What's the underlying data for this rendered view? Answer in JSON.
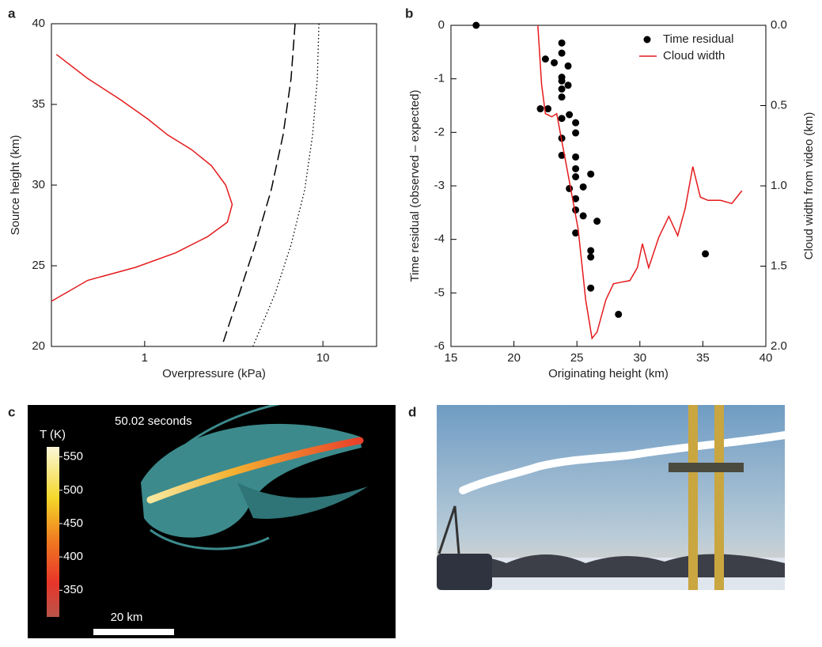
{
  "chart_data": [
    {
      "type": "line",
      "panel": "a",
      "xscale": "log",
      "xlabel": "Overpressure (kPa)",
      "ylabel": "Source height (km)",
      "xlim": [
        0.3,
        20
      ],
      "xticks": [
        1,
        10
      ],
      "ylim": [
        20,
        40
      ],
      "yticks": [
        20,
        25,
        30,
        35,
        40
      ],
      "series": [
        {
          "color": "#e41a1c",
          "line_style": "solid",
          "x": [
            0.32,
            0.48,
            0.73,
            1.04,
            1.35,
            1.83,
            2.37,
            2.85,
            3.1,
            2.91,
            2.25,
            1.49,
            0.89,
            0.48,
            0.3
          ],
          "values": [
            38.1,
            36.6,
            35.3,
            34.1,
            33.1,
            32.2,
            31.2,
            30.0,
            28.8,
            27.7,
            26.8,
            25.8,
            24.9,
            24.1,
            22.8
          ]
        },
        {
          "color": "#000000",
          "line_style": "dashed",
          "x": [
            6.98,
            6.63,
            5.98,
            5.13,
            4.17,
            3.4,
            2.71
          ],
          "values": [
            40,
            36.6,
            33.1,
            29.7,
            26.3,
            23.3,
            20
          ]
        },
        {
          "color": "#000000",
          "line_style": "dotted",
          "x": [
            9.5,
            9.3,
            8.75,
            7.9,
            6.63,
            5.4,
            4.05
          ],
          "values": [
            40,
            36.6,
            33.1,
            29.7,
            26.3,
            23.3,
            20
          ]
        }
      ]
    },
    {
      "type": "scatter",
      "panel": "b",
      "xlabel": "Originating height (km)",
      "ylabel": "Time residual (observed – expected)",
      "y2label": "Cloud width from video (km)",
      "xlim": [
        15,
        40
      ],
      "xticks": [
        15,
        20,
        25,
        30,
        35,
        40
      ],
      "ylim": [
        -6,
        0
      ],
      "yticks": [
        -6,
        -5,
        -4,
        -3,
        -2,
        -1,
        0
      ],
      "y2lim": [
        2,
        0
      ],
      "y2ticks": [
        {
          "value": 0,
          "label": "0.0"
        },
        0.5,
        {
          "value": 1,
          "label": "1.0"
        },
        1.5,
        {
          "value": 2,
          "label": "2.0"
        }
      ],
      "legend": "upper-right",
      "series": [
        {
          "name": "Time residual",
          "color": "#000000",
          "marker": "circle",
          "x": [
            17.0,
            22.5,
            23.2,
            23.8,
            23.8,
            24.3,
            23.8,
            23.8,
            22.1,
            22.7,
            23.8,
            23.8,
            24.3,
            23.8,
            24.4,
            24.9,
            24.9,
            23.8,
            23.8,
            24.9,
            24.9,
            24.9,
            26.1,
            25.5,
            24.4,
            24.9,
            24.9,
            25.5,
            26.6,
            26.1,
            26.1,
            24.9,
            26.1,
            28.3,
            35.2
          ],
          "values": [
            0.0,
            -0.63,
            -0.7,
            -0.33,
            -0.52,
            -0.76,
            -0.97,
            -1.04,
            -1.56,
            -1.56,
            -1.19,
            -1.34,
            -1.12,
            -1.74,
            -1.67,
            -1.82,
            -2.01,
            -2.11,
            -2.43,
            -2.46,
            -2.68,
            -2.83,
            -2.78,
            -3.02,
            -3.05,
            -3.24,
            -3.45,
            -3.56,
            -3.66,
            -4.21,
            -4.33,
            -3.88,
            -4.91,
            -5.4,
            -4.27
          ]
        },
        {
          "name": "Cloud width",
          "color": "#e41a1c",
          "axis": "y2",
          "type": "line",
          "x": [
            21.9,
            22.2,
            22.5,
            23.0,
            23.4,
            23.8,
            24.4,
            25.1,
            25.7,
            26.2,
            26.6,
            27.3,
            27.9,
            28.5,
            29.2,
            29.8,
            30.2,
            30.7,
            31.5,
            32.3,
            33.0,
            33.6,
            34.2,
            34.8,
            35.4,
            36.4,
            37.3,
            38.1
          ],
          "values": [
            0.0,
            0.37,
            0.55,
            0.57,
            0.55,
            0.72,
            0.97,
            1.27,
            1.71,
            1.95,
            1.91,
            1.71,
            1.61,
            1.6,
            1.59,
            1.51,
            1.36,
            1.51,
            1.32,
            1.19,
            1.31,
            1.14,
            0.88,
            1.07,
            1.09,
            1.09,
            1.11,
            1.03
          ]
        }
      ]
    },
    {
      "type": "image",
      "panel": "c",
      "annotation": "50.02 seconds",
      "clabel": "T (K)",
      "clim": [
        310,
        565
      ],
      "cticks": [
        350,
        400,
        450,
        500,
        550
      ],
      "scalebar": "20 km"
    },
    {
      "type": "photo",
      "panel": "d"
    }
  ]
}
